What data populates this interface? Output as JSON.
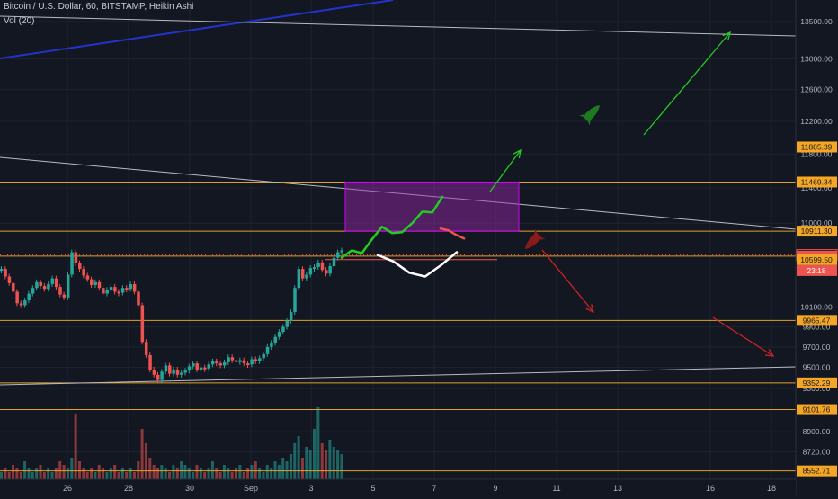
{
  "header": {
    "symbol_line": "Bitcoin / U.S. Dollar, 60, BITSTAMP, Heikin Ashi",
    "volume_line": "Vol (20)"
  },
  "colors": {
    "background": "#131722",
    "grid": "#1f2330",
    "up": "#26a69a",
    "down": "#ef5350",
    "level_line": "#e0a128",
    "trend_white": "#b7bac2",
    "trend_blue": "#2233cc",
    "arrow_green": "#22cc22",
    "arrow_red": "#cc2222",
    "box_fill": "rgba(156, 39, 176, 0.45)",
    "box_border": "#d500f9",
    "label_orange_bg": "#f5a623",
    "label_red_bg": "#ef5350"
  },
  "chart_data": {
    "type": "line",
    "title": "Bitcoin / U.S. Dollar, 60, BITSTAMP, Heikin Ashi",
    "x_ticks": [
      "26",
      "28",
      "30",
      "Sep",
      "3",
      "5",
      "7",
      "9",
      "11",
      "13",
      "16",
      "18"
    ],
    "y_ticks": [
      13500,
      13000,
      12600,
      12200,
      11800,
      11400,
      11000,
      10100,
      9900,
      9700,
      9500,
      9300,
      8900,
      8720
    ],
    "y_tick_labels": [
      "13500.00",
      "13000.00",
      "12600.00",
      "12200.00",
      "11800.00",
      "11400.00",
      "11000.00",
      "10100.00",
      "9900.00",
      "9700.00",
      "9500.00",
      "9300.00",
      "8900.00",
      "8720.00"
    ],
    "y_scale": "log",
    "ylim": [
      8480,
      13800
    ],
    "grid": true,
    "horizontal_levels": [
      {
        "value": 11885.39,
        "label": "11885.39"
      },
      {
        "value": 11469.34,
        "label": "11469.34"
      },
      {
        "value": 10911.3,
        "label": "10911.30"
      },
      {
        "value": 10637.44,
        "label": "10637.44"
      },
      {
        "value": 9965.47,
        "label": "9965.47"
      },
      {
        "value": 9352.29,
        "label": "9352.29"
      },
      {
        "value": 9101.76,
        "label": "9101.76"
      },
      {
        "value": 8552.71,
        "label": "8552.71"
      }
    ],
    "current_price": {
      "value": 10650.0,
      "label": "10650.00",
      "countdown": "23:18"
    },
    "support_marker": {
      "value": 10599.5,
      "label": "10599.50"
    },
    "series": [
      {
        "x": [
          0,
          3,
          6,
          9,
          12,
          15,
          18,
          21,
          24,
          27,
          30,
          33,
          36,
          39,
          42,
          45,
          48,
          51,
          54,
          57,
          60,
          63,
          66,
          69,
          72,
          75,
          78,
          81,
          84,
          87,
          90,
          93,
          96,
          99,
          102,
          105,
          108,
          111,
          114,
          117,
          120,
          123,
          126,
          129,
          132,
          135,
          138,
          141,
          144,
          147,
          150,
          153,
          156,
          159,
          162,
          165,
          168,
          171,
          174,
          177,
          180,
          183,
          186,
          189,
          192,
          195,
          198,
          201,
          204,
          207,
          210,
          213,
          216,
          219,
          222,
          225,
          228,
          231,
          234,
          237,
          240,
          243,
          246,
          249,
          252,
          255,
          258,
          261
        ],
        "values": [
          10500,
          10420,
          10350,
          10260,
          10140,
          10120,
          10170,
          10240,
          10300,
          10360,
          10320,
          10290,
          10340,
          10400,
          10310,
          10230,
          10200,
          10440,
          10680,
          10560,
          10500,
          10430,
          10390,
          10330,
          10360,
          10300,
          10240,
          10280,
          10310,
          10260,
          10250,
          10300,
          10290,
          10340,
          10260,
          10120,
          9750,
          9620,
          9480,
          9430,
          9380,
          9460,
          9520,
          9440,
          9480,
          9430,
          9450,
          9470,
          9510,
          9540,
          9480,
          9500,
          9490,
          9530,
          9560,
          9540,
          9520,
          9550,
          9600,
          9570,
          9560,
          9570,
          9540,
          9530,
          9580,
          9560,
          9590,
          9630,
          9700,
          9740,
          9800,
          9850,
          9900,
          9960,
          10050,
          10300,
          10500,
          10400,
          10440,
          10510,
          10520,
          10570,
          10490,
          10450,
          10530,
          10620,
          10680,
          10700
        ]
      }
    ],
    "volume": [
      2,
      3,
      2,
      4,
      3,
      2,
      5,
      3,
      2,
      3,
      4,
      2,
      3,
      2,
      3,
      5,
      4,
      3,
      6,
      18,
      5,
      3,
      2,
      3,
      2,
      4,
      3,
      2,
      3,
      4,
      2,
      3,
      2,
      3,
      2,
      5,
      14,
      10,
      6,
      4,
      3,
      4,
      3,
      2,
      4,
      3,
      5,
      4,
      3,
      2,
      4,
      3,
      2,
      3,
      5,
      3,
      2,
      4,
      3,
      2,
      3,
      4,
      2,
      3,
      4,
      5,
      3,
      2,
      4,
      3,
      5,
      4,
      6,
      5,
      7,
      10,
      12,
      6,
      9,
      8,
      14,
      20,
      10,
      8,
      11,
      9,
      8,
      7
    ],
    "projection_green": [
      10620,
      10700,
      10670,
      10820,
      10960,
      10890,
      10900,
      11000,
      11130,
      11120,
      11300
    ],
    "projection_white": [
      10650,
      10580,
      10460,
      10420,
      10540,
      10680
    ],
    "projection_red": [
      10940,
      10920,
      10870,
      10830
    ]
  }
}
